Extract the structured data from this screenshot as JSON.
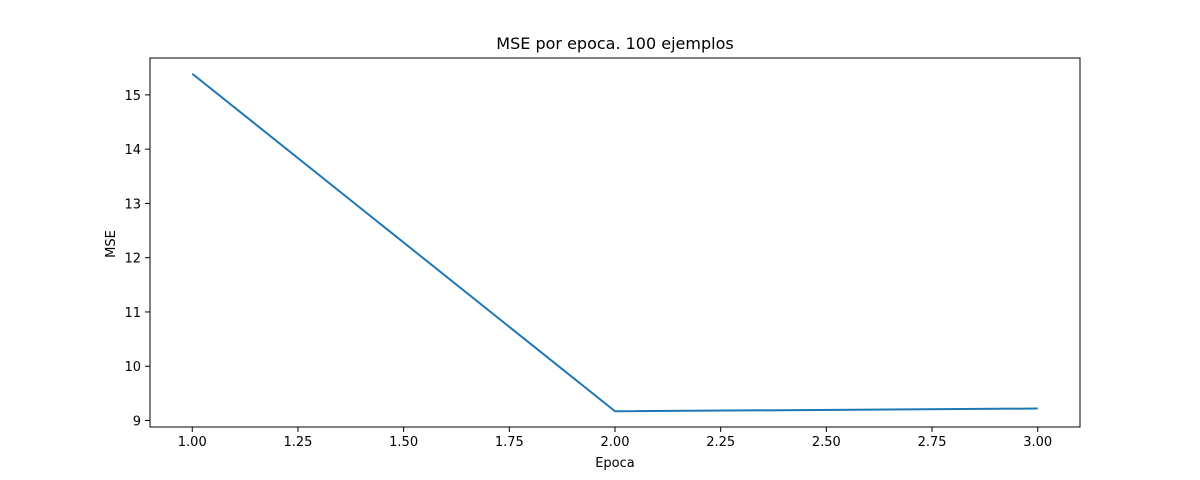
{
  "chart_data": {
    "type": "line",
    "title": "MSE por epoca. 100 ejemplos",
    "xlabel": "Epoca",
    "ylabel": "MSE",
    "x": [
      1.0,
      2.0,
      3.0
    ],
    "series": [
      {
        "color": "#1f77b4",
        "values": [
          15.39,
          9.17,
          9.22
        ]
      }
    ],
    "xlim": [
      0.9,
      3.1
    ],
    "ylim": [
      8.88,
      15.68
    ],
    "xticks": [
      1.0,
      1.25,
      1.5,
      1.75,
      2.0,
      2.25,
      2.5,
      2.75,
      3.0
    ],
    "xtick_labels": [
      "1.00",
      "1.25",
      "1.50",
      "1.75",
      "2.00",
      "2.25",
      "2.50",
      "2.75",
      "3.00"
    ],
    "yticks": [
      9,
      10,
      11,
      12,
      13,
      14,
      15
    ],
    "ytick_labels": [
      "9",
      "10",
      "11",
      "12",
      "13",
      "14",
      "15"
    ],
    "grid": false,
    "legend": "none"
  }
}
